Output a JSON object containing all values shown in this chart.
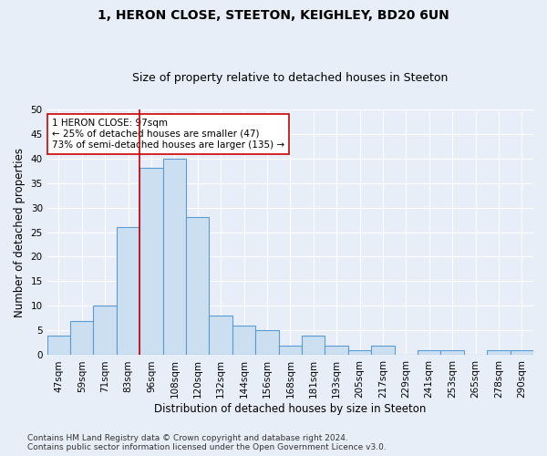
{
  "title1": "1, HERON CLOSE, STEETON, KEIGHLEY, BD20 6UN",
  "title2": "Size of property relative to detached houses in Steeton",
  "xlabel": "Distribution of detached houses by size in Steeton",
  "ylabel": "Number of detached properties",
  "categories": [
    "47sqm",
    "59sqm",
    "71sqm",
    "83sqm",
    "96sqm",
    "108sqm",
    "120sqm",
    "132sqm",
    "144sqm",
    "156sqm",
    "168sqm",
    "181sqm",
    "193sqm",
    "205sqm",
    "217sqm",
    "229sqm",
    "241sqm",
    "253sqm",
    "265sqm",
    "278sqm",
    "290sqm"
  ],
  "values": [
    4,
    7,
    10,
    26,
    38,
    40,
    28,
    8,
    6,
    5,
    2,
    4,
    2,
    1,
    2,
    0,
    1,
    1,
    0,
    1,
    1
  ],
  "bar_color": "#ccdff0",
  "bar_edge_color": "#5b9bd5",
  "vline_color": "#cc0000",
  "annotation_line1": "1 HERON CLOSE: 97sqm",
  "annotation_line2": "← 25% of detached houses are smaller (47)",
  "annotation_line3": "73% of semi-detached houses are larger (135) →",
  "annotation_box_color": "#ffffff",
  "annotation_box_edge": "#cc0000",
  "ylim": [
    0,
    50
  ],
  "yticks": [
    0,
    5,
    10,
    15,
    20,
    25,
    30,
    35,
    40,
    45,
    50
  ],
  "footer": "Contains HM Land Registry data © Crown copyright and database right 2024.\nContains public sector information licensed under the Open Government Licence v3.0.",
  "bg_color": "#e8eef7",
  "plot_bg_color": "#e8eef7",
  "grid_color": "#ffffff",
  "title_fontsize": 10,
  "subtitle_fontsize": 9,
  "label_fontsize": 8.5,
  "tick_fontsize": 7.5,
  "footer_fontsize": 6.5
}
